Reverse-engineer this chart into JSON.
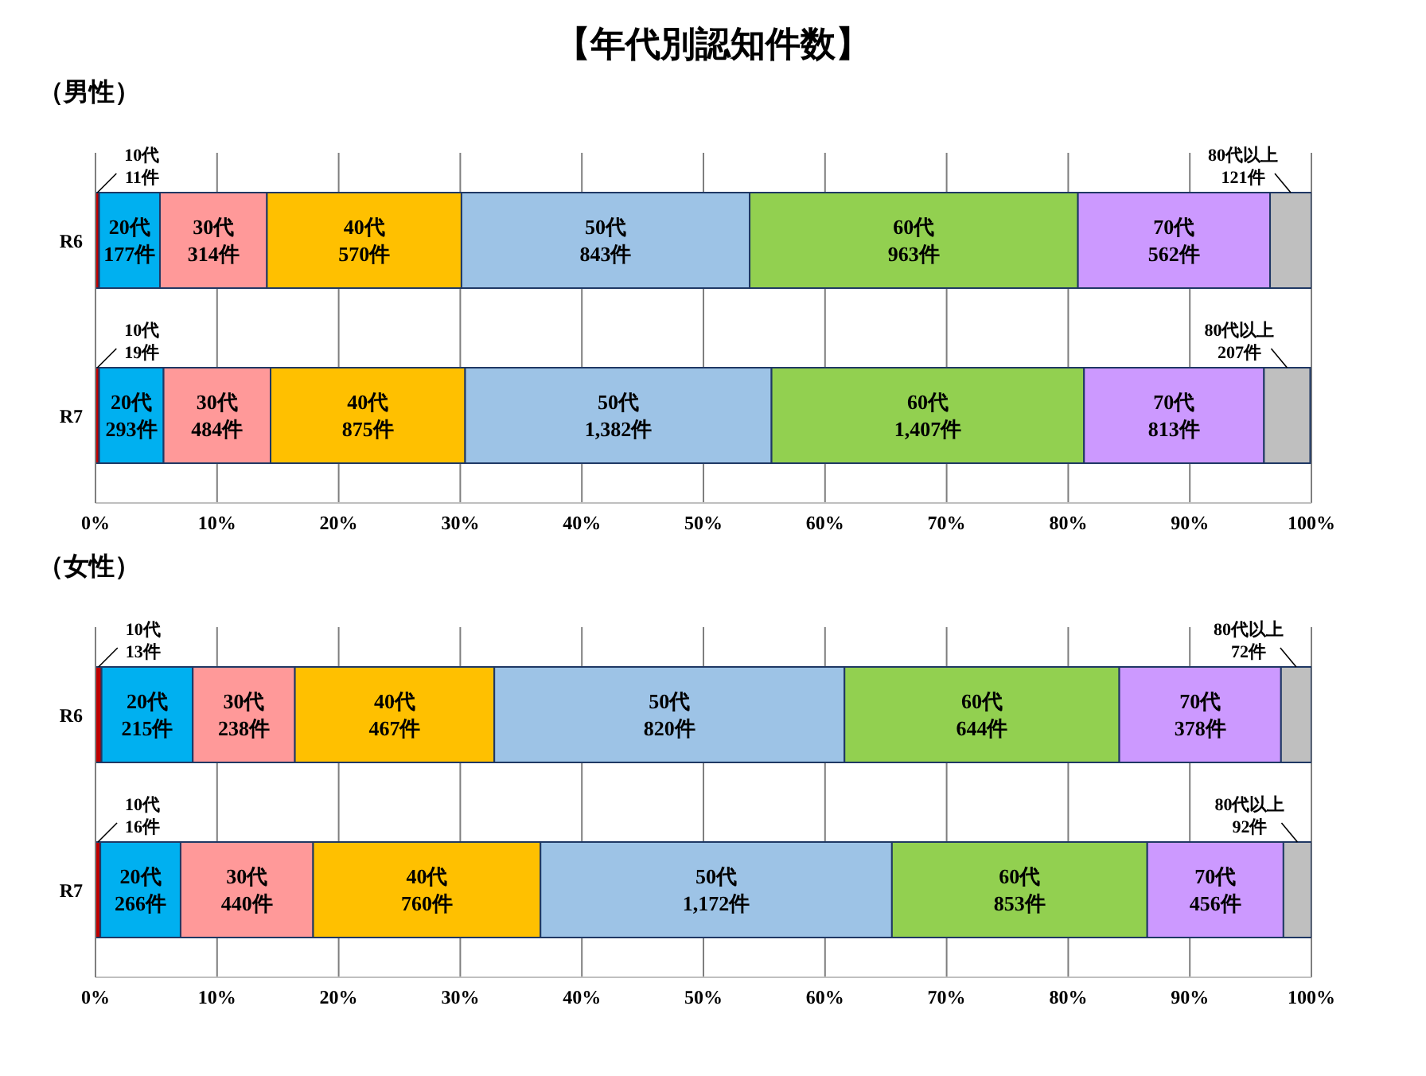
{
  "chart_data": [
    {
      "type": "bar",
      "title": "【年代別認知件数】",
      "subtitle": "（男性）",
      "orientation": "horizontal",
      "stacked": true,
      "grid": "x",
      "categories": [
        "R6",
        "R7"
      ],
      "xlim": [
        0,
        100
      ],
      "xticks": [
        {
          "value": 0,
          "label": "0%"
        },
        {
          "value": 10,
          "label": "10%"
        },
        {
          "value": 20,
          "label": "20%"
        },
        {
          "value": 30,
          "label": "30%"
        },
        {
          "value": 40,
          "label": "40%"
        },
        {
          "value": 50,
          "label": "50%"
        },
        {
          "value": 60,
          "label": "60%"
        },
        {
          "value": 70,
          "label": "70%"
        },
        {
          "value": 80,
          "label": "80%"
        },
        {
          "value": 90,
          "label": "90%"
        },
        {
          "value": 100,
          "label": "100%"
        }
      ],
      "series": [
        {
          "name": "10代",
          "color": "#c00000",
          "values": [
            0.3,
            0.3
          ]
        },
        {
          "name": "20代",
          "color": "#00b0f0",
          "values": [
            5.0,
            5.3
          ]
        },
        {
          "name": "30代",
          "color": "#ff9999",
          "values": [
            8.8,
            8.8
          ]
        },
        {
          "name": "40代",
          "color": "#ffc000",
          "values": [
            16.0,
            16.0
          ]
        },
        {
          "name": "50代",
          "color": "#9dc3e6",
          "values": [
            23.7,
            25.2
          ]
        },
        {
          "name": "60代",
          "color": "#92d050",
          "values": [
            27.0,
            25.7
          ]
        },
        {
          "name": "70代",
          "color": "#cc99ff",
          "values": [
            15.8,
            14.8
          ]
        },
        {
          "name": "80代以上",
          "color": "#bfbfbf",
          "values": [
            3.4,
            3.8
          ]
        }
      ],
      "annotations": [
        "11件",
        "177件",
        "314件",
        "570件",
        "843件",
        "963件",
        "562件",
        "121件",
        "19件",
        "293件",
        "484件",
        "875件",
        "1,382件",
        "1,407件",
        "813件",
        "207件"
      ]
    },
    {
      "type": "bar",
      "subtitle": "（女性）",
      "orientation": "horizontal",
      "stacked": true,
      "grid": "x",
      "categories": [
        "R6",
        "R7"
      ],
      "xlim": [
        0,
        100
      ],
      "xticks": [
        {
          "value": 0,
          "label": "0%"
        },
        {
          "value": 10,
          "label": "10%"
        },
        {
          "value": 20,
          "label": "20%"
        },
        {
          "value": 30,
          "label": "30%"
        },
        {
          "value": 40,
          "label": "40%"
        },
        {
          "value": 50,
          "label": "50%"
        },
        {
          "value": 60,
          "label": "60%"
        },
        {
          "value": 70,
          "label": "70%"
        },
        {
          "value": 80,
          "label": "80%"
        },
        {
          "value": 90,
          "label": "90%"
        },
        {
          "value": 100,
          "label": "100%"
        }
      ],
      "series": [
        {
          "name": "10代",
          "color": "#c00000",
          "values": [
            0.5,
            0.4
          ]
        },
        {
          "name": "20代",
          "color": "#00b0f0",
          "values": [
            7.5,
            6.6
          ]
        },
        {
          "name": "30代",
          "color": "#ff9999",
          "values": [
            8.4,
            10.9
          ]
        },
        {
          "name": "40代",
          "color": "#ffc000",
          "values": [
            16.4,
            18.7
          ]
        },
        {
          "name": "50代",
          "color": "#9dc3e6",
          "values": [
            28.8,
            28.9
          ]
        },
        {
          "name": "60代",
          "color": "#92d050",
          "values": [
            22.6,
            21.0
          ]
        },
        {
          "name": "70代",
          "color": "#cc99ff",
          "values": [
            13.3,
            11.2
          ]
        },
        {
          "name": "80代以上",
          "color": "#bfbfbf",
          "values": [
            2.5,
            2.3
          ]
        }
      ],
      "annotations": [
        "13件",
        "215件",
        "238件",
        "467件",
        "820件",
        "644件",
        "378件",
        "72件",
        "16件",
        "266件",
        "440件",
        "760件",
        "1,172件",
        "853件",
        "456件",
        "92件"
      ]
    }
  ]
}
